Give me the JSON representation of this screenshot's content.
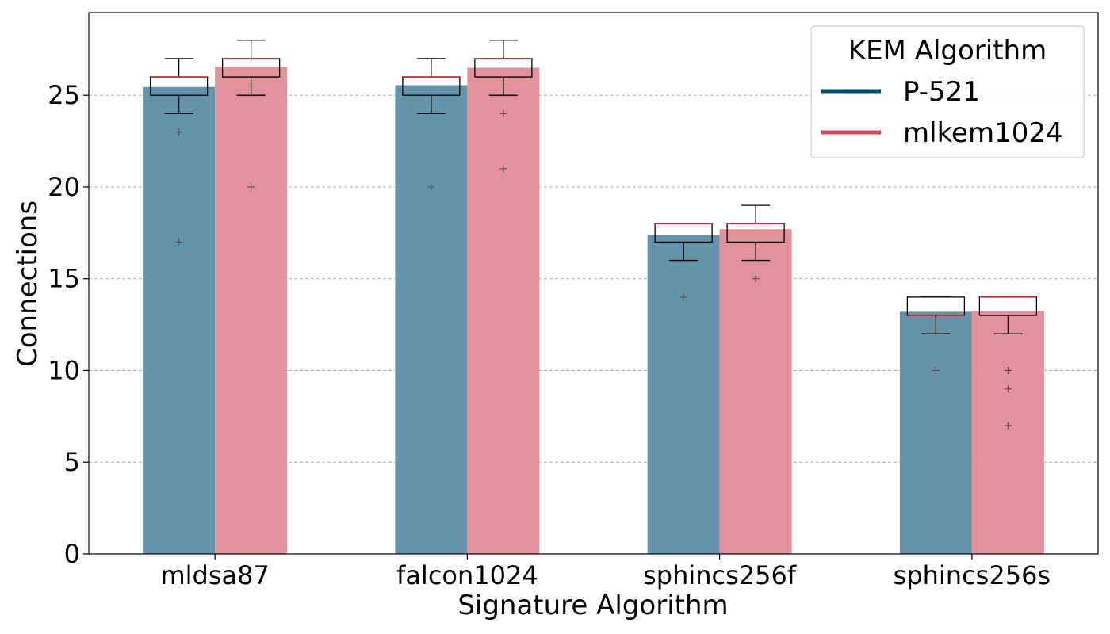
{
  "chart_data": {
    "type": "bar",
    "title": "",
    "xlabel": "Signature Algorithm",
    "ylabel": "Connections",
    "ylim": [
      0,
      29.5
    ],
    "yticks": [
      0,
      5,
      10,
      15,
      20,
      25
    ],
    "grid": "horizontal dashed",
    "legend_position": "top-right",
    "legend_title": "KEM Algorithm",
    "categories": [
      "mldsa87",
      "falcon1024",
      "sphincs256f",
      "sphincs256s"
    ],
    "series": [
      {
        "name": "P-521",
        "color": "#004c6d",
        "bar_color": "#6594aa",
        "values": [
          25.45,
          25.55,
          17.4,
          13.2
        ],
        "boxes": [
          {
            "q1": 25,
            "median": 26,
            "q3": 26,
            "whisker_low": 24,
            "whisker_high": 27,
            "outliers": [
              23,
              17
            ]
          },
          {
            "q1": 25,
            "median": 26,
            "q3": 26,
            "whisker_low": 24,
            "whisker_high": 27,
            "outliers": [
              20
            ]
          },
          {
            "q1": 17,
            "median": 18,
            "q3": 18,
            "whisker_low": 16,
            "whisker_high": 18,
            "outliers": [
              14
            ]
          },
          {
            "q1": 13,
            "median": 13,
            "q3": 14,
            "whisker_low": 12,
            "whisker_high": 14,
            "outliers": [
              10
            ]
          }
        ]
      },
      {
        "name": "mlkem1024",
        "color": "#d1495b",
        "bar_color": "#e3929b",
        "values": [
          26.55,
          26.5,
          17.7,
          13.25
        ],
        "boxes": [
          {
            "q1": 26,
            "median": 27,
            "q3": 27,
            "whisker_low": 25,
            "whisker_high": 28,
            "outliers": [
              20
            ]
          },
          {
            "q1": 26,
            "median": 27,
            "q3": 27,
            "whisker_low": 25,
            "whisker_high": 28,
            "outliers": [
              24,
              21
            ]
          },
          {
            "q1": 17,
            "median": 18,
            "q3": 18,
            "whisker_low": 16,
            "whisker_high": 19,
            "outliers": [
              15
            ]
          },
          {
            "q1": 13,
            "median": 14,
            "q3": 14,
            "whisker_low": 12,
            "whisker_high": 14,
            "outliers": [
              10,
              9,
              7
            ]
          }
        ]
      }
    ]
  }
}
